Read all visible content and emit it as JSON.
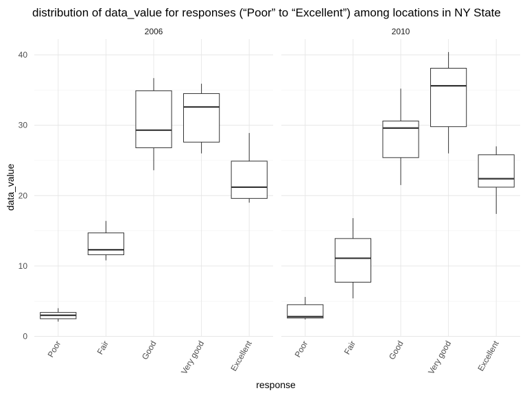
{
  "chart_data": {
    "type": "box",
    "title": "distribution of data_value for responses (“Poor” to “Excellent”) among locations in NY State",
    "xlabel": "response",
    "ylabel": "data_value",
    "categories": [
      "Poor",
      "Fair",
      "Good",
      "Very good",
      "Excellent"
    ],
    "ylim": [
      0,
      42
    ],
    "yticks": [
      0,
      10,
      20,
      30,
      40
    ],
    "grid": true,
    "facets": [
      {
        "name": "2006",
        "boxes": [
          {
            "category": "Poor",
            "min": 2.1,
            "q1": 2.5,
            "median": 3.0,
            "q3": 3.4,
            "max": 4.0
          },
          {
            "category": "Fair",
            "min": 10.8,
            "q1": 11.6,
            "median": 12.3,
            "q3": 14.7,
            "max": 16.4
          },
          {
            "category": "Good",
            "min": 23.6,
            "q1": 26.8,
            "median": 29.3,
            "q3": 34.9,
            "max": 36.7
          },
          {
            "category": "Very good",
            "min": 26.0,
            "q1": 27.6,
            "median": 32.6,
            "q3": 34.5,
            "max": 35.9
          },
          {
            "category": "Excellent",
            "min": 19.0,
            "q1": 19.6,
            "median": 21.2,
            "q3": 24.9,
            "max": 28.9
          }
        ]
      },
      {
        "name": "2010",
        "boxes": [
          {
            "category": "Poor",
            "min": 2.4,
            "q1": 2.6,
            "median": 2.8,
            "q3": 4.5,
            "max": 5.6
          },
          {
            "category": "Fair",
            "min": 5.4,
            "q1": 7.7,
            "median": 11.1,
            "q3": 13.9,
            "max": 16.8
          },
          {
            "category": "Good",
            "min": 21.5,
            "q1": 25.4,
            "median": 29.6,
            "q3": 30.6,
            "max": 35.2
          },
          {
            "category": "Very good",
            "min": 26.0,
            "q1": 29.8,
            "median": 35.6,
            "q3": 38.1,
            "max": 40.4
          },
          {
            "category": "Excellent",
            "min": 17.4,
            "q1": 21.2,
            "median": 22.4,
            "q3": 25.8,
            "max": 27.0
          }
        ]
      }
    ]
  }
}
